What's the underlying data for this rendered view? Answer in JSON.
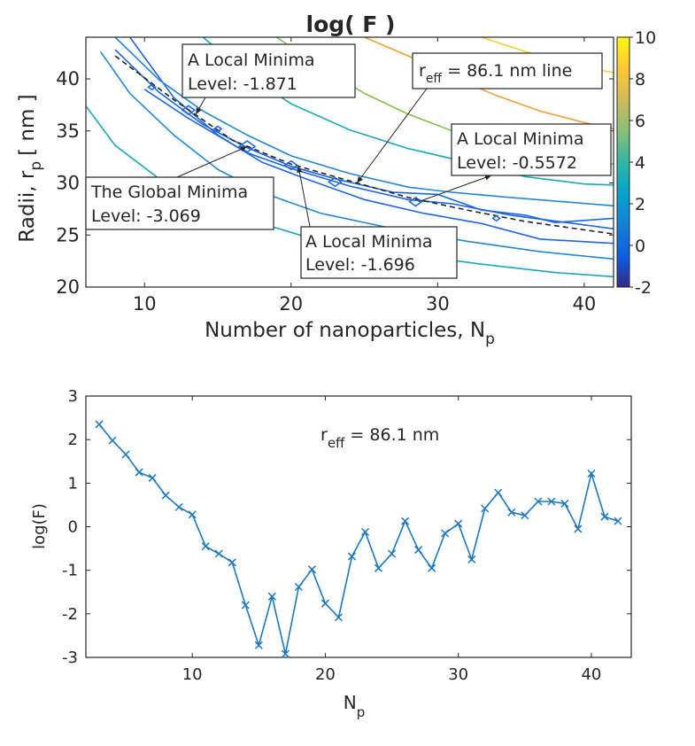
{
  "chart_data": [
    {
      "type": "contour",
      "title": "log( F )",
      "xlabel": "Number of nanoparticles, N",
      "xlabel_sub": "p",
      "ylabel": "Radii, r",
      "ylabel_sub": "p",
      "ylabel_unit": "[ nm ]",
      "xlim": [
        6,
        42
      ],
      "ylim": [
        20,
        44
      ],
      "xticks": [
        "10",
        "20",
        "30",
        "40"
      ],
      "yticks": [
        "20",
        "25",
        "30",
        "35",
        "40"
      ],
      "colorbar": {
        "min": -2,
        "max": 10,
        "ticks": [
          "10",
          "8",
          "6",
          "4",
          "2",
          "0",
          "-2"
        ]
      },
      "grid": false,
      "contour_levels": [
        {
          "level": -1.5,
          "color": "#1e66e0",
          "points": [
            [
              10,
              39.0
            ],
            [
              13,
              36.2
            ],
            [
              17,
              32.9
            ],
            [
              20,
              31.4
            ],
            [
              24,
              29.7
            ],
            [
              28,
              28.4
            ],
            [
              31,
              28.0
            ],
            [
              35,
              26.9
            ],
            [
              42,
              25.6
            ]
          ]
        },
        {
          "level": -1.0,
          "color": "#1e66e0",
          "points": [
            [
              8,
              42.8
            ],
            [
              11,
              38.7
            ],
            [
              14,
              35.6
            ],
            [
              17,
              33.4
            ],
            [
              20,
              31.6
            ],
            [
              23,
              30.4
            ],
            [
              27,
              29.1
            ],
            [
              30,
              28.9
            ],
            [
              33,
              27.4
            ],
            [
              36,
              26.9
            ],
            [
              38,
              26.2
            ],
            [
              42,
              26.6
            ]
          ]
        },
        {
          "level": -0.5,
          "color": "#1e66e0",
          "points": [
            [
              9,
              44
            ],
            [
              12,
              38.2
            ],
            [
              15,
              34.6
            ],
            [
              18,
              32.0
            ],
            [
              21,
              30.4
            ],
            [
              25,
              28.4
            ],
            [
              29,
              27.1
            ],
            [
              33,
              26.1
            ],
            [
              37,
              24.6
            ],
            [
              42,
              24.2
            ]
          ]
        },
        {
          "level": 0.5,
          "color": "#2188d8",
          "points": [
            [
              8,
              44
            ],
            [
              11,
              39.9
            ],
            [
              14,
              36.9
            ],
            [
              17,
              34.6
            ],
            [
              20,
              32.6
            ],
            [
              24,
              30.9
            ],
            [
              28,
              29.6
            ],
            [
              31,
              29.1
            ],
            [
              35,
              28.6
            ],
            [
              42,
              27.8
            ]
          ]
        },
        {
          "level": 0.5,
          "color": "#2188d8",
          "points": [
            [
              7,
              42.6
            ],
            [
              9,
              38.6
            ],
            [
              12,
              34.6
            ],
            [
              15,
              31.3
            ],
            [
              18,
              29.1
            ],
            [
              22,
              27.1
            ],
            [
              27,
              25.6
            ],
            [
              32,
              24.4
            ],
            [
              37,
              23.4
            ],
            [
              42,
              22.7
            ]
          ]
        },
        {
          "level": 2,
          "color": "#1aa8b8",
          "points": [
            [
              14,
              44
            ],
            [
              17,
              40.4
            ],
            [
              20,
              37.6
            ],
            [
              24,
              35.1
            ],
            [
              28,
              33.3
            ],
            [
              32,
              32.0
            ],
            [
              36,
              30.6
            ],
            [
              40,
              29.9
            ],
            [
              42,
              29.8
            ]
          ]
        },
        {
          "level": 2,
          "color": "#1aa8b8",
          "points": [
            [
              6,
              37.4
            ],
            [
              8,
              33.6
            ],
            [
              11,
              30.4
            ],
            [
              14,
              28.3
            ],
            [
              18,
              26.1
            ],
            [
              22,
              24.4
            ],
            [
              27,
              23.3
            ],
            [
              33,
              22.2
            ],
            [
              38,
              21.4
            ],
            [
              42,
              21.0
            ]
          ]
        },
        {
          "level": 4,
          "color": "#84c24a",
          "points": [
            [
              19,
              44
            ],
            [
              22,
              41.2
            ],
            [
              25,
              38.6
            ],
            [
              28,
              36.6
            ],
            [
              31,
              35.0
            ],
            [
              35,
              33.6
            ],
            [
              39,
              32.4
            ],
            [
              42,
              31.8
            ]
          ]
        },
        {
          "level": 6,
          "color": "#f0a030",
          "points": [
            [
              25,
              44
            ],
            [
              28,
              42.2
            ],
            [
              31,
              40.2
            ],
            [
              34,
              38.4
            ],
            [
              37,
              36.9
            ],
            [
              40,
              35.8
            ],
            [
              42,
              35.2
            ]
          ]
        },
        {
          "level": 8,
          "color": "#f6d030",
          "points": [
            [
              33,
              44
            ],
            [
              36,
              42.6
            ],
            [
              39,
              41.4
            ],
            [
              42,
              40.6
            ]
          ]
        }
      ],
      "reff_line": {
        "label": "86.1 nm line",
        "points": [
          [
            8,
            42.2
          ],
          [
            12,
            38.0
          ],
          [
            16,
            34.1
          ],
          [
            20,
            31.8
          ],
          [
            24,
            30.2
          ],
          [
            28,
            28.6
          ],
          [
            32,
            27.4
          ],
          [
            36,
            26.3
          ],
          [
            40,
            25.5
          ],
          [
            42,
            25.1
          ]
        ]
      },
      "minima_markers": [
        [
          10.5,
          39.2
        ],
        [
          13,
          37.0
        ],
        [
          15,
          35.2
        ],
        [
          17,
          33.5
        ],
        [
          20,
          31.7
        ],
        [
          23,
          30.1
        ],
        [
          28.5,
          28.2
        ],
        [
          34,
          26.6
        ]
      ],
      "annotations": [
        {
          "lines": [
            "A Local Minima",
            "Level: -1.871"
          ],
          "target": [
            13.5,
            36.6
          ]
        },
        {
          "lines": [
            "The Global Minima",
            "Level: -3.069"
          ],
          "target": [
            17,
            33.5
          ]
        },
        {
          "lines": [
            "A Local Minima",
            "Level: -1.696"
          ],
          "target": [
            20.5,
            31.6
          ]
        },
        {
          "lines": [
            "A Local Minima",
            "Level: -0.5572"
          ],
          "target": [
            28.7,
            28.2
          ]
        },
        {
          "label_main": "r",
          "label_sub": "eff",
          "label_rest": " = 86.1 nm line",
          "target": [
            24.5,
            30.0
          ]
        }
      ]
    },
    {
      "type": "line",
      "xlabel": "N",
      "xlabel_sub": "p",
      "ylabel": "log(F)",
      "xlim": [
        2,
        43
      ],
      "ylim": [
        -3,
        3
      ],
      "xticks": [
        "10",
        "20",
        "30",
        "40"
      ],
      "yticks": [
        "3",
        "2",
        "1",
        "0",
        "-1",
        "-2",
        "-3"
      ],
      "grid": false,
      "annotation": {
        "main": "r",
        "sub": "eff",
        "rest": " = 86.1 nm"
      },
      "series": [
        {
          "color": "#1a78c2",
          "marker": "x",
          "x": [
            3,
            4,
            5,
            6,
            7,
            8,
            9,
            10,
            11,
            12,
            13,
            14,
            15,
            16,
            17,
            18,
            19,
            20,
            21,
            22,
            23,
            24,
            25,
            26,
            27,
            28,
            29,
            30,
            31,
            32,
            33,
            34,
            35,
            36,
            37,
            38,
            39,
            40,
            41,
            42
          ],
          "y": [
            2.35,
            1.98,
            1.66,
            1.25,
            1.12,
            0.72,
            0.45,
            0.28,
            -0.45,
            -0.62,
            -0.82,
            -1.8,
            -2.72,
            -1.6,
            -2.92,
            -1.38,
            -0.98,
            -1.76,
            -2.08,
            -0.68,
            -0.12,
            -0.95,
            -0.62,
            0.13,
            -0.53,
            -0.95,
            -0.15,
            0.07,
            -0.75,
            0.42,
            0.78,
            0.33,
            0.26,
            0.58,
            0.58,
            0.53,
            -0.05,
            1.22,
            0.23,
            0.13
          ]
        }
      ]
    }
  ]
}
